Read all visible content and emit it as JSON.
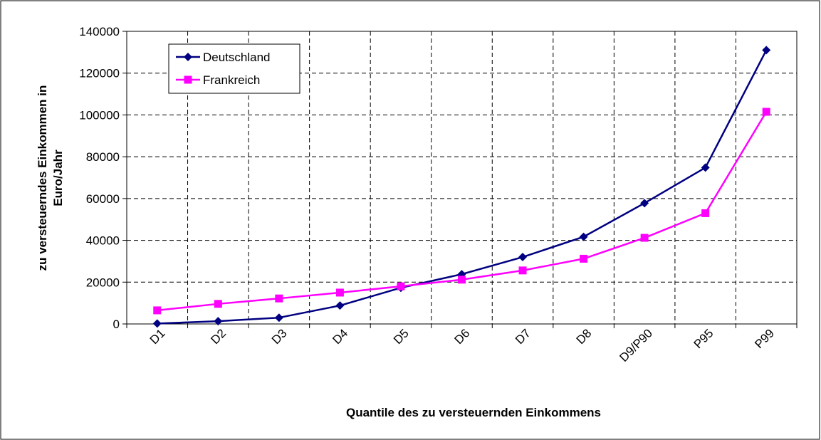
{
  "chart_data": {
    "type": "line",
    "x_label": "Quantile des zu versteuernden Einkommens",
    "y_label": [
      "zu versteuerndes Einkommen in",
      "Euro/Jahr"
    ],
    "categories": [
      "D1",
      "D2",
      "D3",
      "D4",
      "D5",
      "D6",
      "D7",
      "D8",
      "D9/P90",
      "P95",
      "P99"
    ],
    "series": [
      {
        "name": "Deutschland",
        "color": "#000080",
        "marker": "diamond",
        "values": [
          200,
          1300,
          3000,
          8800,
          17300,
          23800,
          32000,
          41700,
          57800,
          74800,
          131000
        ]
      },
      {
        "name": "Frankreich",
        "color": "#ff00ff",
        "marker": "square",
        "values": [
          6500,
          9600,
          12200,
          15000,
          18000,
          21200,
          25600,
          31200,
          41200,
          53000,
          101500
        ]
      }
    ],
    "ylim": [
      0,
      140000
    ],
    "yticks": [
      0,
      20000,
      40000,
      60000,
      80000,
      100000,
      120000,
      140000
    ],
    "grid": true,
    "legend": "top-left"
  }
}
